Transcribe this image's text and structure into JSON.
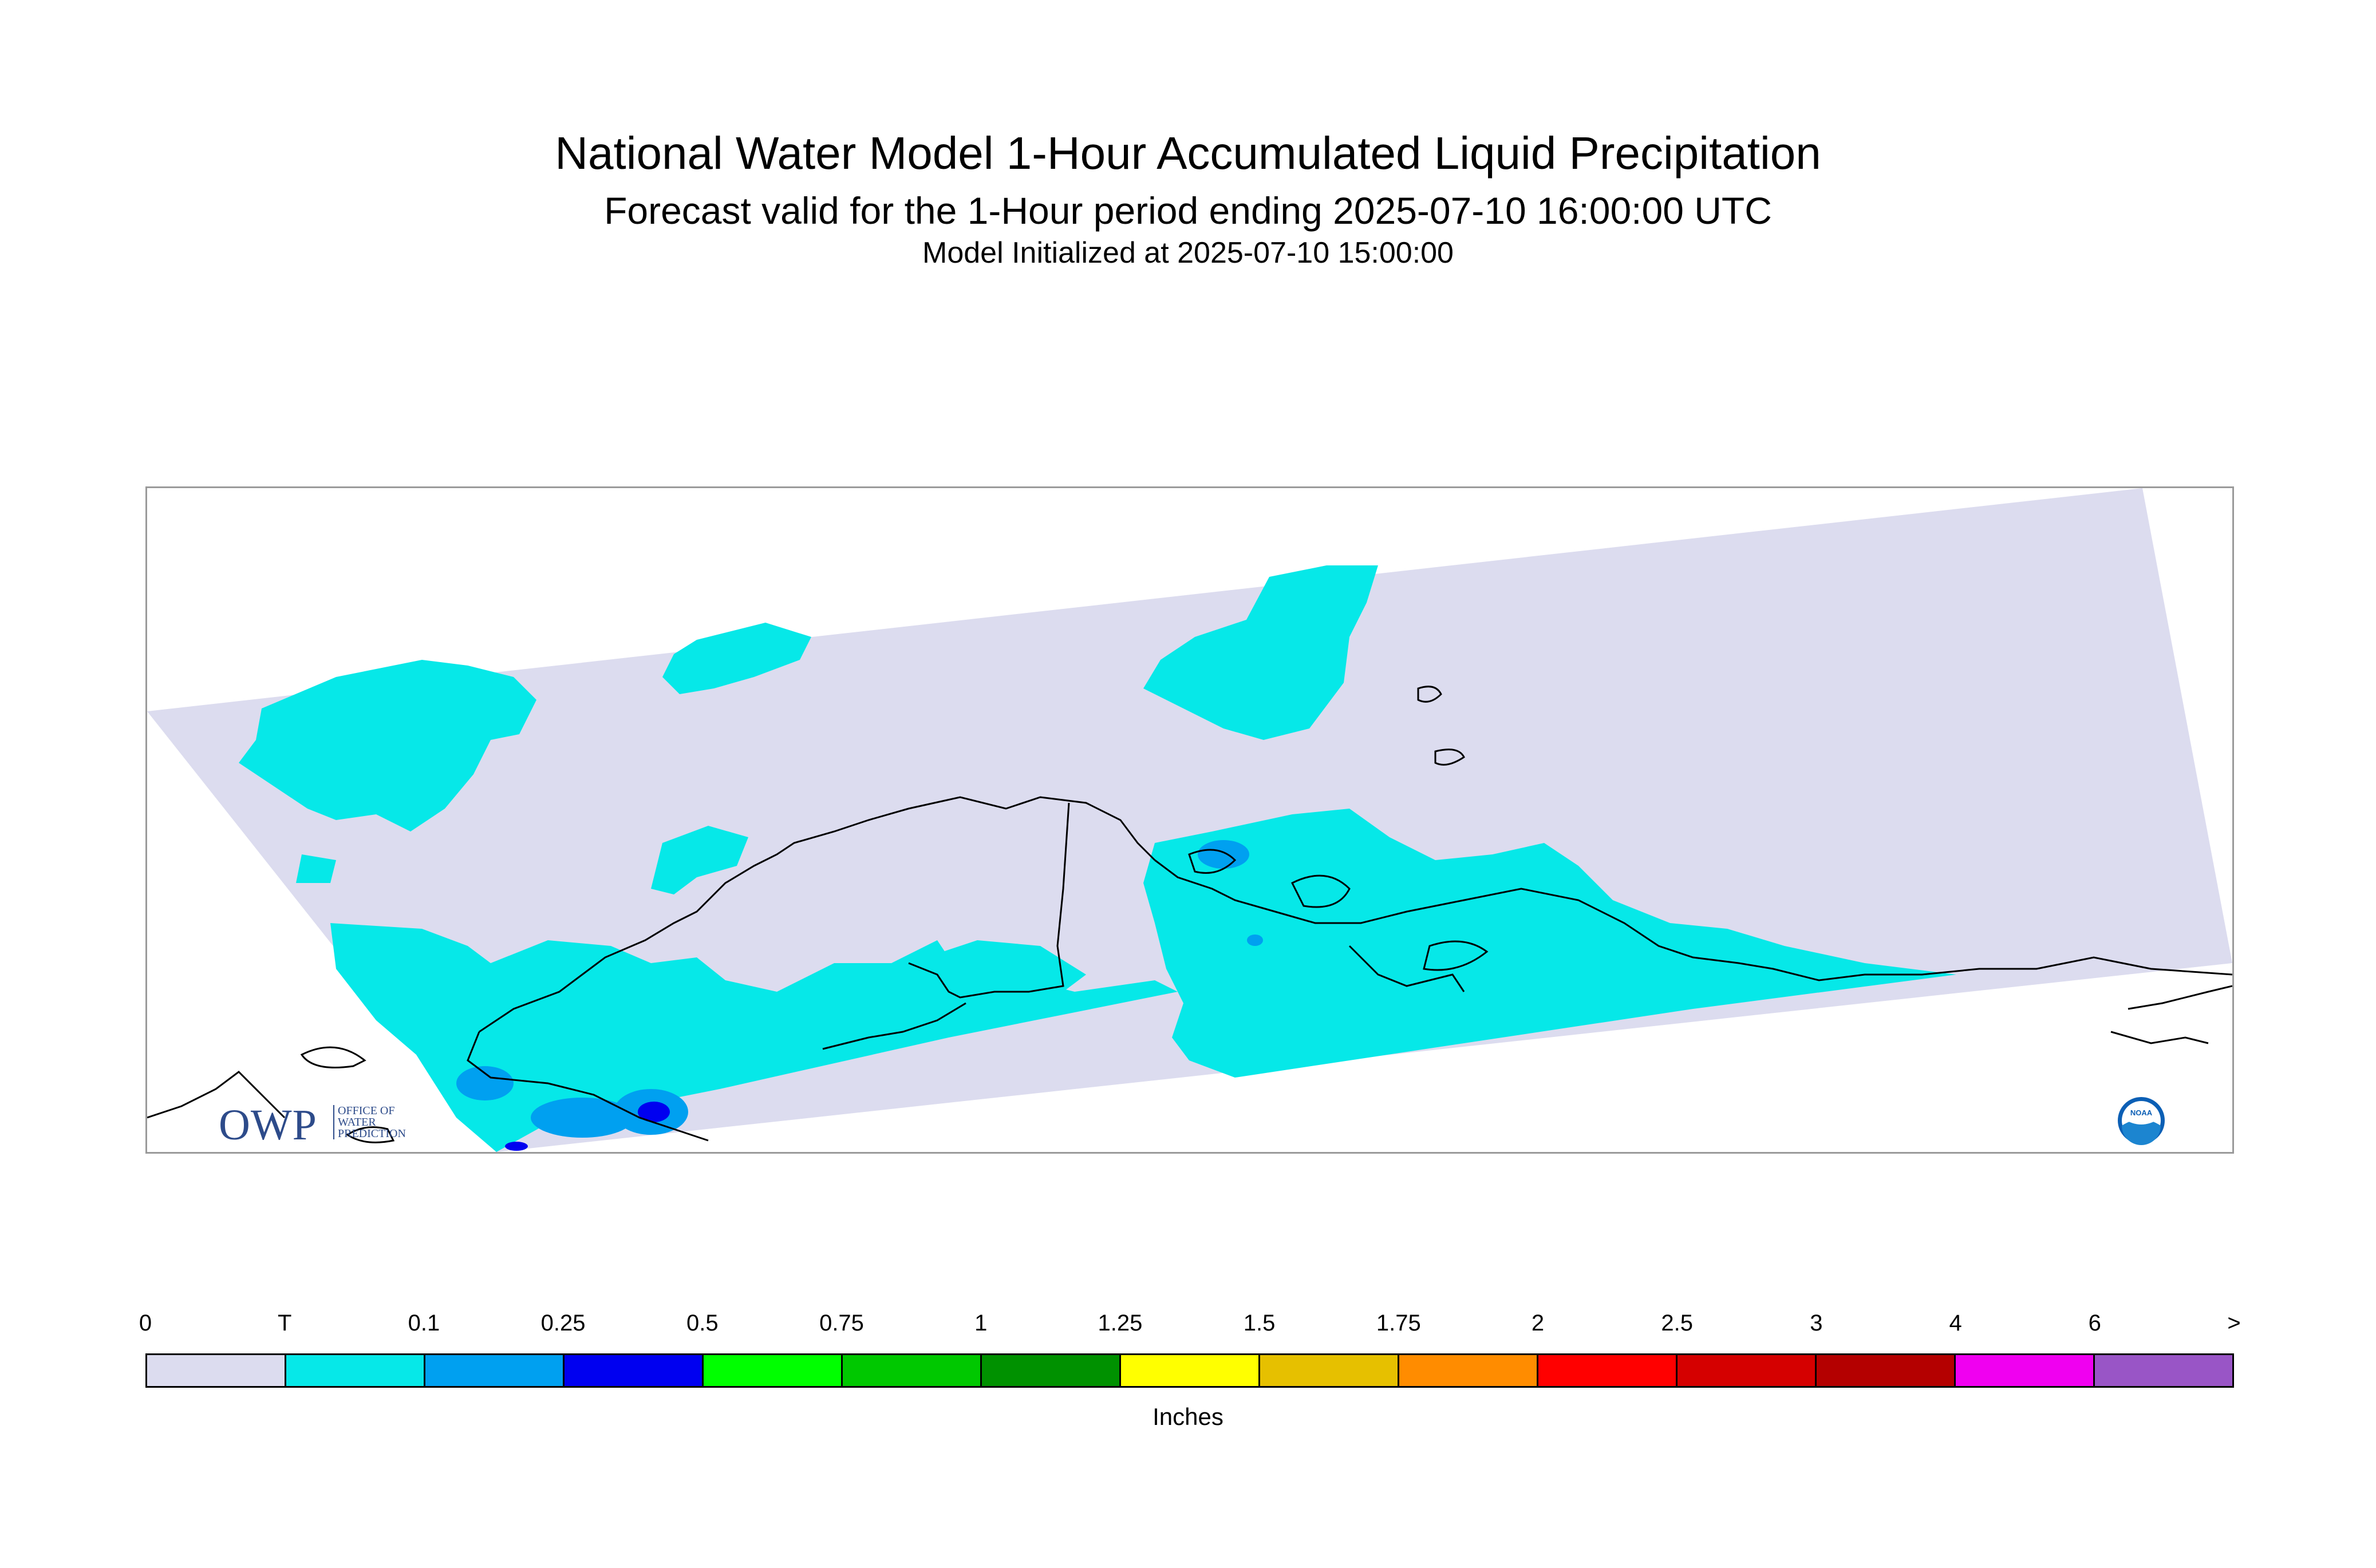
{
  "header": {
    "title": "National Water Model 1-Hour Accumulated Liquid Precipitation",
    "subtitle": "Forecast valid for the 1-Hour period ending 2025-07-10 16:00:00 UTC",
    "init": "Model Initialized at 2025-07-10 15:00:00"
  },
  "map": {
    "region": "Alaska",
    "colors": {
      "zero": "#dcdcef",
      "trace": "#06e8e8",
      "light_blue": "#00a0f0",
      "blue": "#0000f0",
      "coast": "#000000",
      "frame": "#9a9a9a"
    }
  },
  "logos": {
    "owp_letters": "OWP",
    "owp_sub": [
      "OFFICE OF",
      "WATER",
      "PREDICTION"
    ],
    "noaa": "NOAA"
  },
  "legend": {
    "labels": [
      "0",
      "T",
      "0.1",
      "0.25",
      "0.5",
      "0.75",
      "1",
      "1.25",
      "1.5",
      "1.75",
      "2",
      "2.5",
      "3",
      "4",
      "6",
      ">"
    ],
    "colors": [
      "#dcdcef",
      "#06e8e8",
      "#00a0f0",
      "#0000f0",
      "#00ff00",
      "#00c800",
      "#009100",
      "#ffff00",
      "#e6c000",
      "#ff8c00",
      "#ff0000",
      "#d50000",
      "#b40000",
      "#f000f0",
      "#9955c6"
    ],
    "units": "Inches"
  }
}
